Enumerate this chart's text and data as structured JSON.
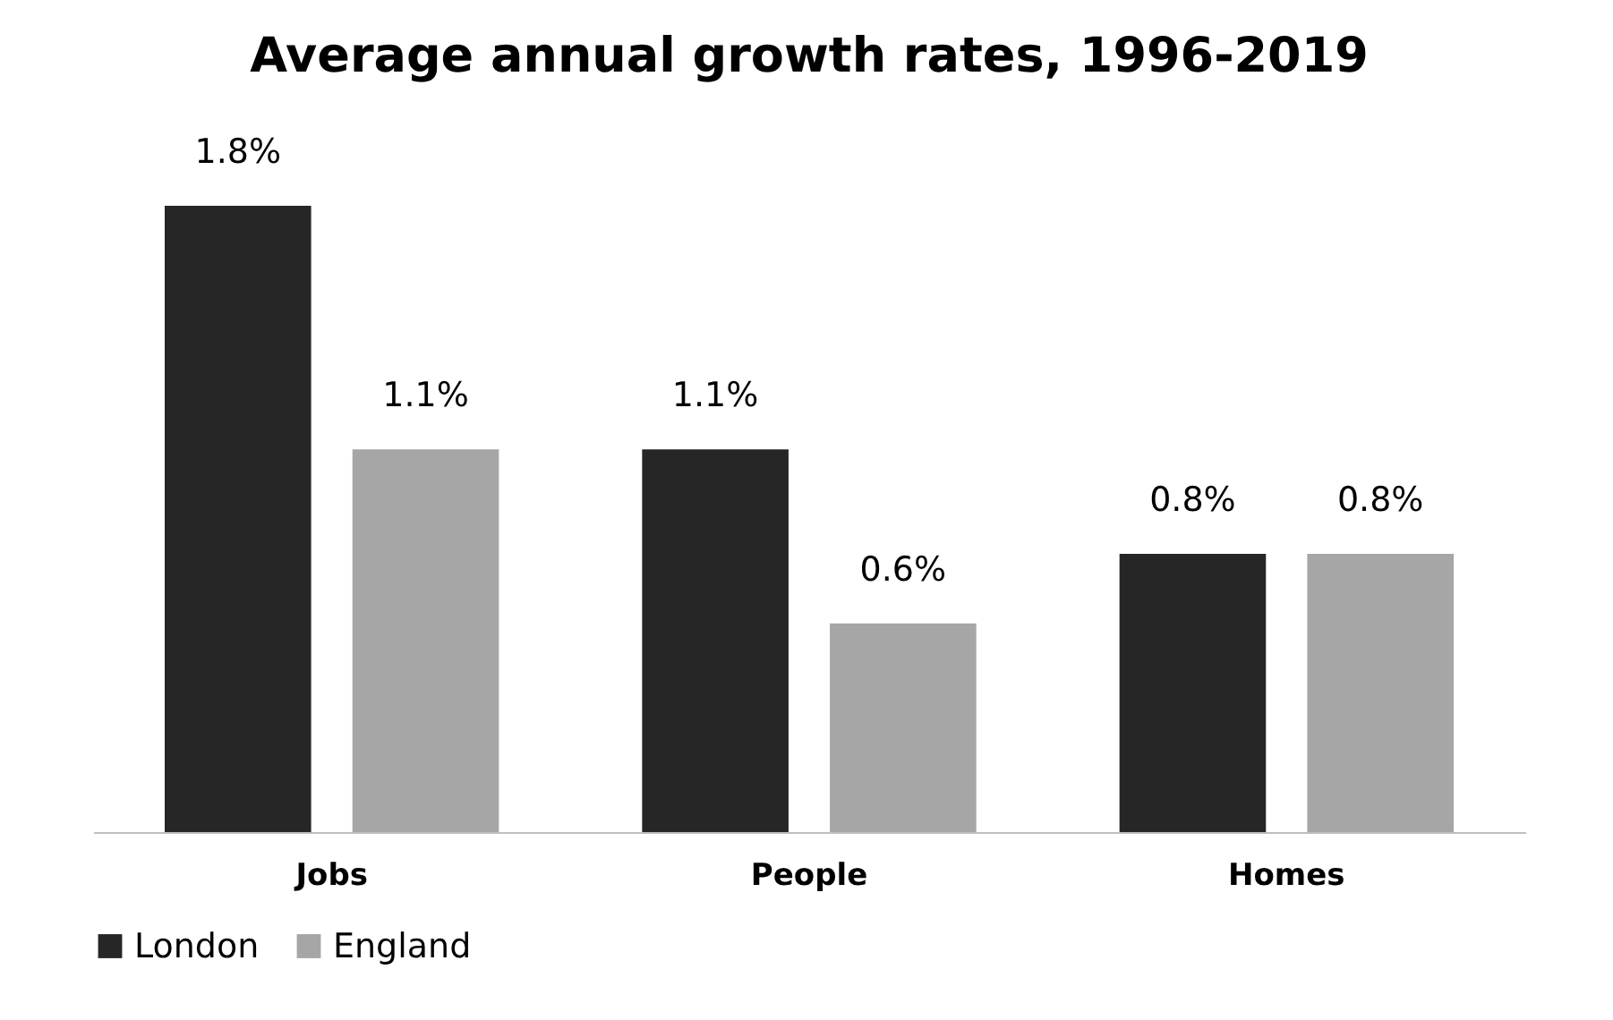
{
  "chart_data": {
    "type": "bar",
    "title": "Average annual growth rates, 1996-2019",
    "categories": [
      "Jobs",
      "People",
      "Homes"
    ],
    "series": [
      {
        "name": "London",
        "color": "#262626",
        "values": [
          1.8,
          1.1,
          0.8
        ],
        "value_labels": [
          "1.8%",
          "1.1%",
          "0.8%"
        ]
      },
      {
        "name": "England",
        "color": "#a6a6a6",
        "values": [
          1.1,
          0.6,
          0.8
        ],
        "value_labels": [
          "1.1%",
          "0.6%",
          "0.8%"
        ]
      }
    ],
    "legend": "bottom"
  }
}
